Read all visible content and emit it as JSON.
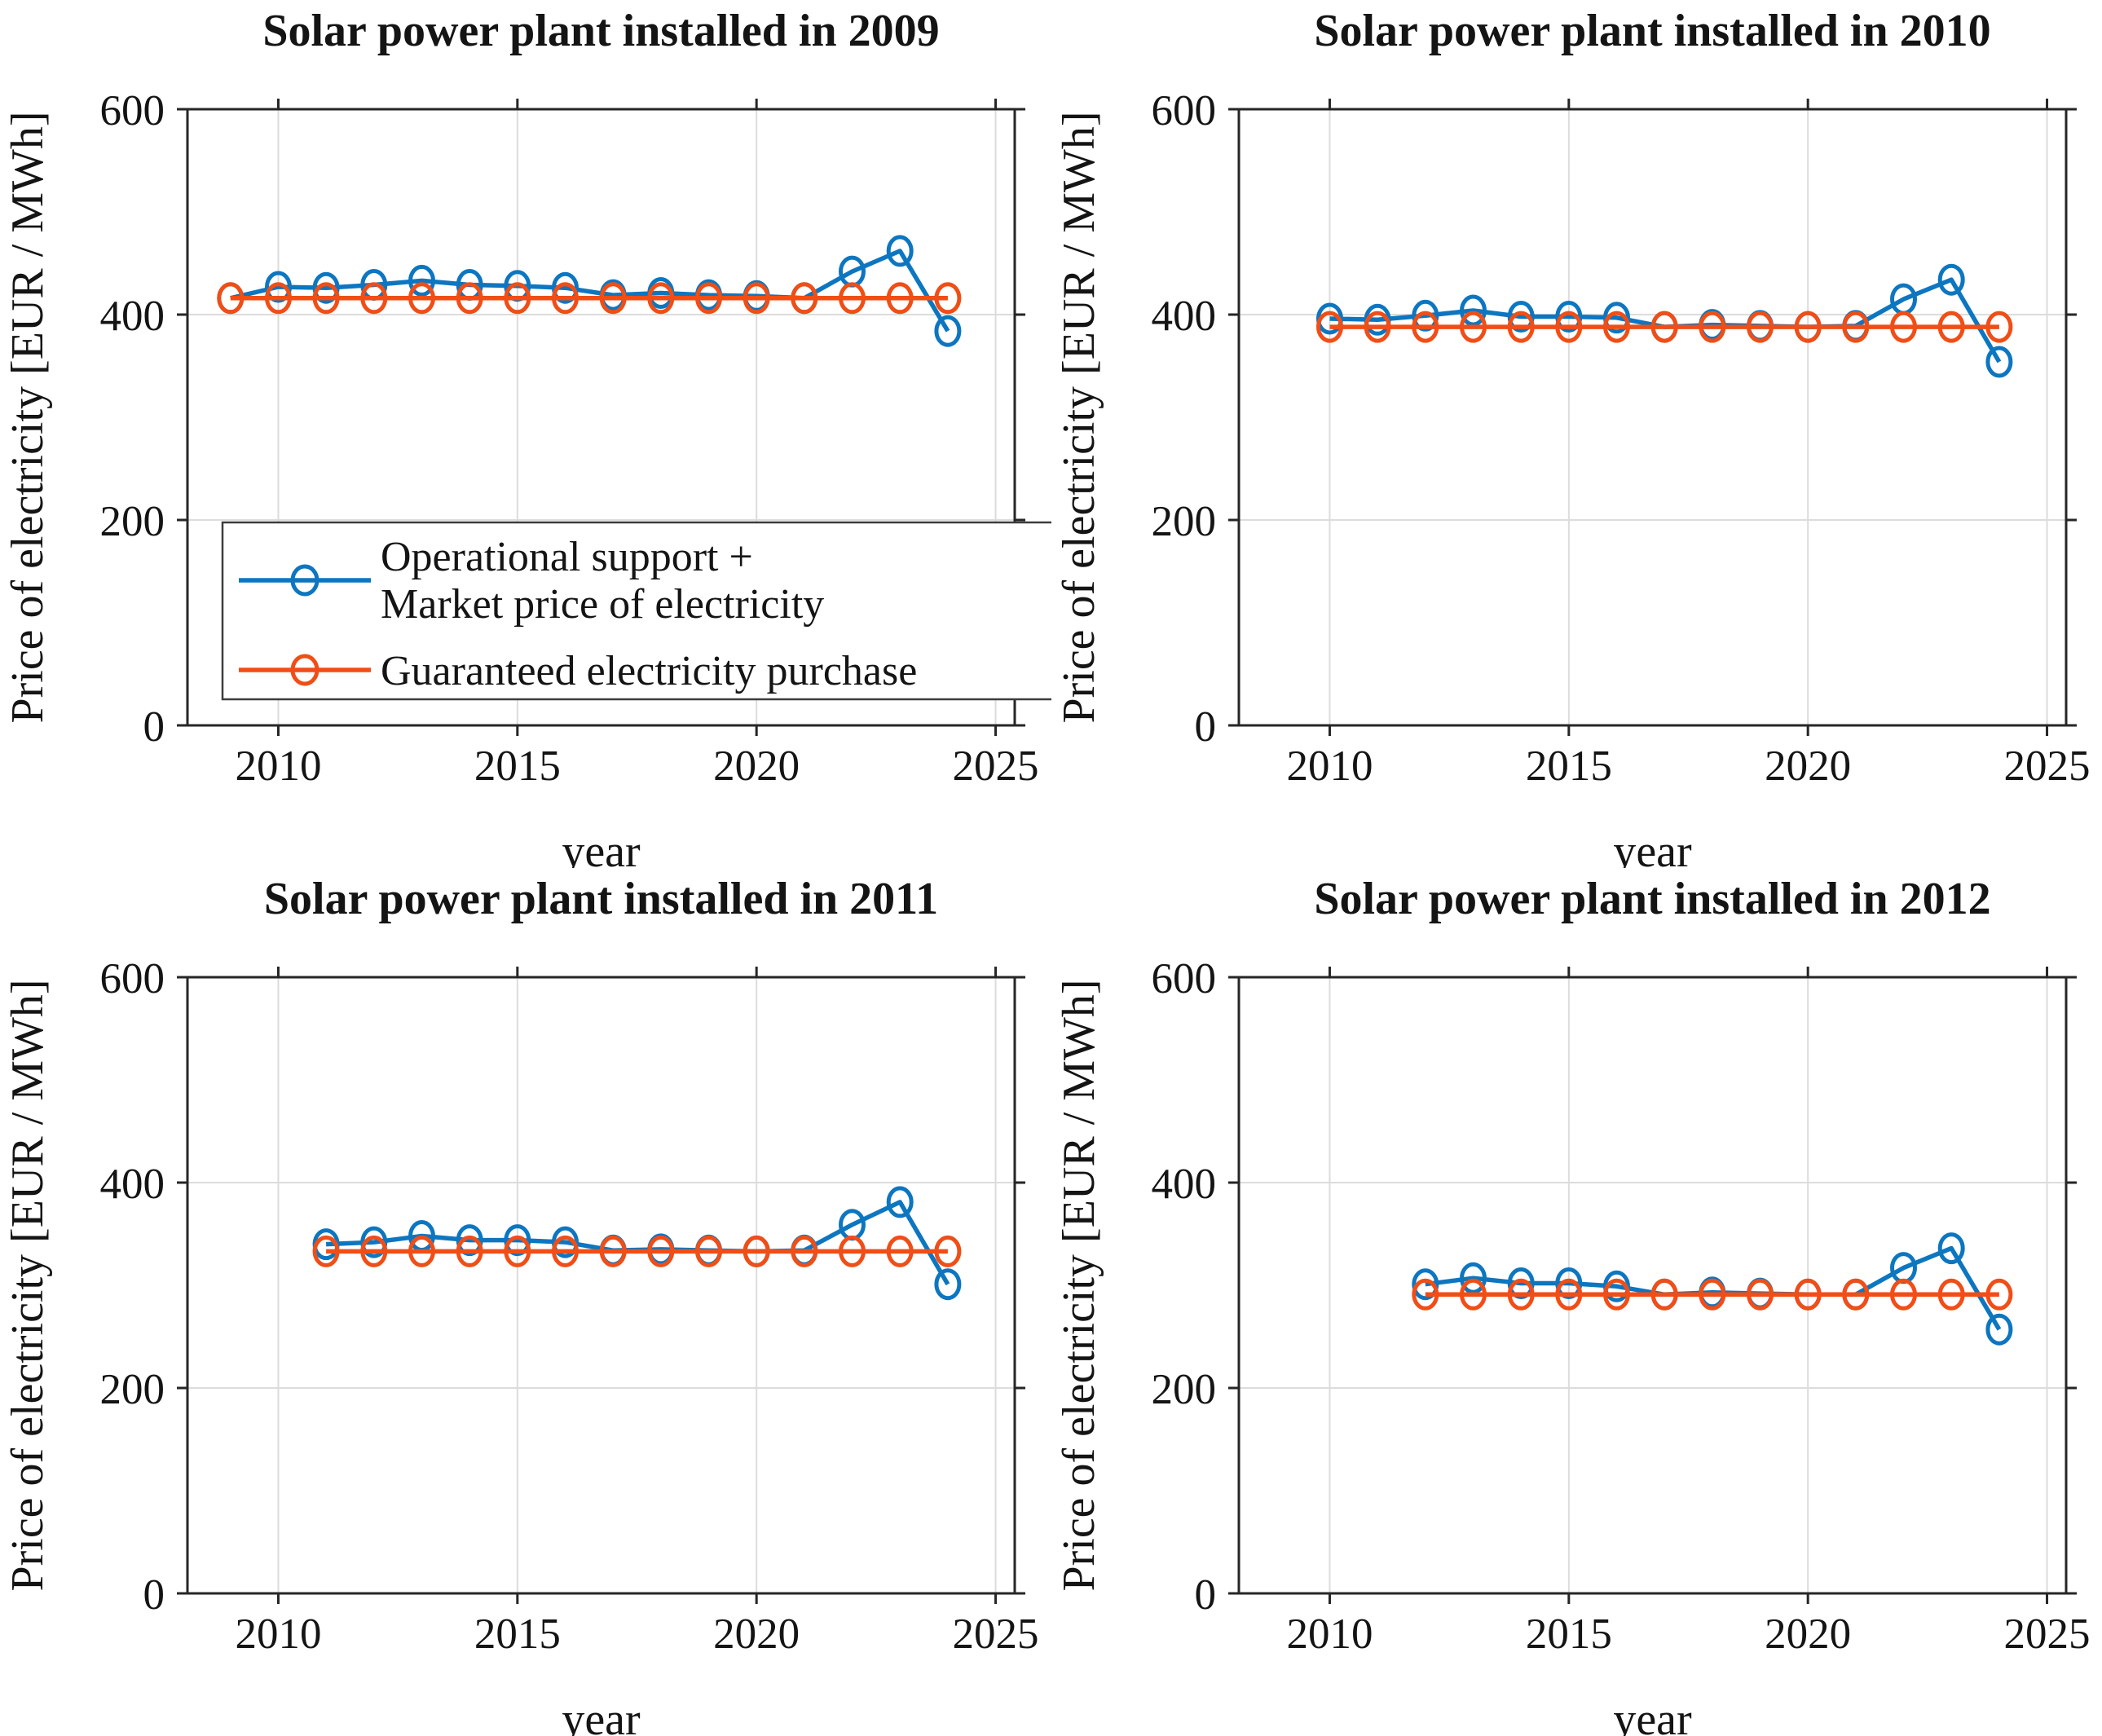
{
  "figure": {
    "background": "#ffffff",
    "xlabel": "year",
    "ylabel": "Price of electricity [EUR / MWh]"
  },
  "colors": {
    "series_blue": "#0d76c0",
    "series_orange": "#f04e16",
    "grid": "#dcdcdc",
    "axis": "#262626",
    "text": "#141414"
  },
  "legend": {
    "position": "bottom-left of first subplot",
    "items": [
      {
        "name": "operational-support-plus-market-price",
        "color": "#0d76c0",
        "label_lines": [
          "Operational support +",
          "Market price of electricity"
        ]
      },
      {
        "name": "guaranteed-electricity-purchase",
        "color": "#f04e16",
        "label_lines": [
          "Guaranteed electricity purchase"
        ]
      }
    ]
  },
  "chart_data": [
    {
      "type": "line",
      "title": "Solar power plant installed in 2009",
      "xlabel": "year",
      "ylabel": "Price of electricity [EUR / MWh]",
      "xlim": [
        2008.1,
        2025.4
      ],
      "ylim": [
        0,
        600
      ],
      "xticks": [
        2010,
        2015,
        2020,
        2025
      ],
      "yticks": [
        0,
        200,
        400,
        600
      ],
      "grid": true,
      "legend_visible": true,
      "x": [
        2009,
        2010,
        2011,
        2012,
        2013,
        2014,
        2015,
        2016,
        2017,
        2018,
        2019,
        2020,
        2021,
        2022,
        2023,
        2024
      ],
      "series": [
        {
          "name": "Operational support + Market price of electricity",
          "color": "#0d76c0",
          "values": [
            416,
            427,
            426,
            429,
            433,
            429,
            428,
            426,
            419,
            421,
            419,
            418,
            416,
            442,
            462,
            384
          ]
        },
        {
          "name": "Guaranteed electricity purchase",
          "color": "#f04e16",
          "values": [
            416,
            416,
            416,
            416,
            416,
            416,
            416,
            416,
            416,
            416,
            416,
            416,
            416,
            416,
            416,
            416
          ]
        }
      ]
    },
    {
      "type": "line",
      "title": "Solar power plant installed in 2010",
      "xlabel": "year",
      "ylabel": "Price of electricity [EUR / MWh]",
      "xlim": [
        2008.1,
        2025.4
      ],
      "ylim": [
        0,
        600
      ],
      "xticks": [
        2010,
        2015,
        2020,
        2025
      ],
      "yticks": [
        0,
        200,
        400,
        600
      ],
      "grid": true,
      "legend_visible": false,
      "x": [
        2010,
        2011,
        2012,
        2013,
        2014,
        2015,
        2016,
        2017,
        2018,
        2019,
        2020,
        2021,
        2022,
        2023,
        2024
      ],
      "series": [
        {
          "name": "Operational support + Market price of electricity",
          "color": "#0d76c0",
          "values": [
            396,
            395,
            399,
            404,
            398,
            398,
            397,
            388,
            390,
            389,
            388,
            389,
            415,
            434,
            354
          ]
        },
        {
          "name": "Guaranteed electricity purchase",
          "color": "#f04e16",
          "values": [
            388,
            388,
            388,
            388,
            388,
            388,
            388,
            388,
            388,
            388,
            388,
            388,
            388,
            388,
            388
          ]
        }
      ]
    },
    {
      "type": "line",
      "title": "Solar power plant installed in 2011",
      "xlabel": "year",
      "ylabel": "Price of electricity [EUR / MWh]",
      "xlim": [
        2008.1,
        2025.4
      ],
      "ylim": [
        0,
        600
      ],
      "xticks": [
        2010,
        2015,
        2020,
        2025
      ],
      "yticks": [
        0,
        200,
        400,
        600
      ],
      "grid": true,
      "legend_visible": false,
      "x": [
        2011,
        2012,
        2013,
        2014,
        2015,
        2016,
        2017,
        2018,
        2019,
        2020,
        2021,
        2022,
        2023,
        2024
      ],
      "series": [
        {
          "name": "Operational support + Market price of electricity",
          "color": "#0d76c0",
          "values": [
            340,
            342,
            348,
            344,
            344,
            342,
            334,
            335,
            334,
            333,
            334,
            359,
            381,
            301
          ]
        },
        {
          "name": "Guaranteed electricity purchase",
          "color": "#f04e16",
          "values": [
            333,
            333,
            333,
            333,
            333,
            333,
            333,
            333,
            333,
            333,
            333,
            333,
            333,
            333
          ]
        }
      ]
    },
    {
      "type": "line",
      "title": "Solar power plant installed in 2012",
      "xlabel": "year",
      "ylabel": "Price of electricity [EUR / MWh]",
      "xlim": [
        2008.1,
        2025.4
      ],
      "ylim": [
        0,
        600
      ],
      "xticks": [
        2010,
        2015,
        2020,
        2025
      ],
      "yticks": [
        0,
        200,
        400,
        600
      ],
      "grid": true,
      "legend_visible": false,
      "x": [
        2012,
        2013,
        2014,
        2015,
        2016,
        2017,
        2018,
        2019,
        2020,
        2021,
        2022,
        2023,
        2024
      ],
      "series": [
        {
          "name": "Operational support + Market price of electricity",
          "color": "#0d76c0",
          "values": [
            301,
            307,
            302,
            302,
            299,
            291,
            293,
            292,
            291,
            291,
            317,
            336,
            257
          ]
        },
        {
          "name": "Guaranteed electricity purchase",
          "color": "#f04e16",
          "values": [
            291,
            291,
            291,
            291,
            291,
            291,
            291,
            291,
            291,
            291,
            291,
            291,
            291
          ]
        }
      ]
    }
  ]
}
